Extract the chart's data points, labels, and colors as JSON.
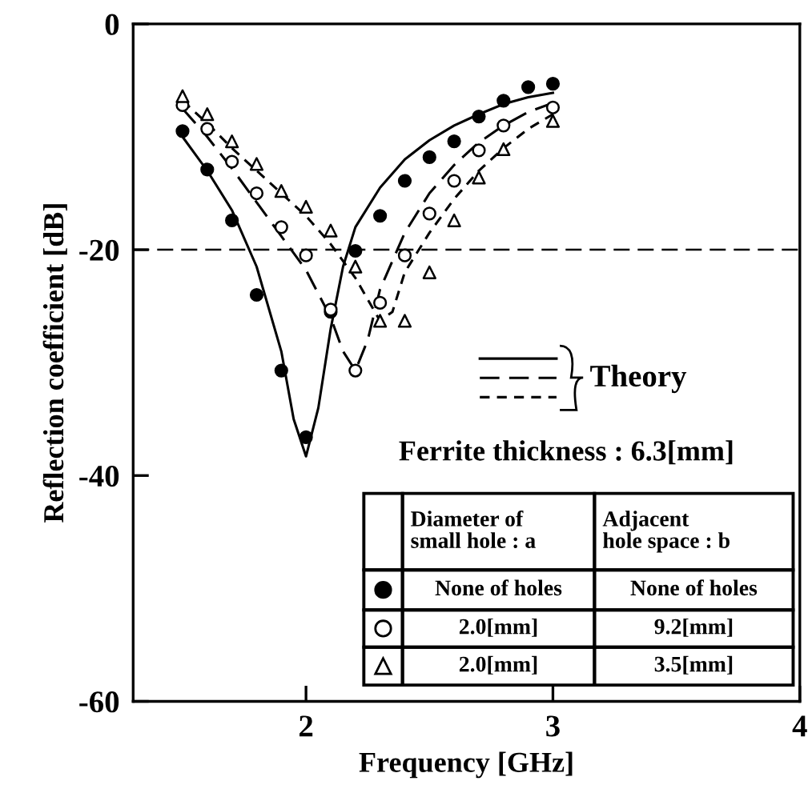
{
  "chart_data": {
    "type": "line",
    "xlabel": "Frequency [GHz]",
    "ylabel": "Reflection coefficient [dB]",
    "xlim": [
      1.3,
      4
    ],
    "xticks": [
      2,
      3,
      4
    ],
    "ylim": [
      -60,
      0
    ],
    "yticks": [
      -60,
      -40,
      -20,
      0
    ],
    "grid": false,
    "ref_lines": [
      {
        "axis": "y",
        "value": -20,
        "line_style": "dashed",
        "color": "#000000"
      }
    ],
    "annotations": [
      "Theory",
      "Ferrite thickness : 6.3[mm]",
      "Diameter of\nsmall hole : a",
      "Adjacent\nhole space : b",
      "None of holes",
      "None of holes",
      "2.0[mm]",
      "9.2[mm]",
      "2.0[mm]",
      "3.5[mm]"
    ],
    "series": [
      {
        "color": "#000000",
        "line_style": "solid",
        "marker": "none",
        "x": [
          1.5,
          1.6,
          1.7,
          1.8,
          1.9,
          1.95,
          2.0,
          2.05,
          2.1,
          2.15,
          2.2,
          2.3,
          2.4,
          2.5,
          2.6,
          2.7,
          2.8,
          2.9,
          3.0
        ],
        "values": [
          -10,
          -13,
          -16.5,
          -21.5,
          -29,
          -35,
          -38.3,
          -34,
          -27,
          -21.5,
          -18,
          -14.5,
          -12,
          -10.3,
          -9,
          -8,
          -7.1,
          -6.5,
          -6.1
        ]
      },
      {
        "color": "#000000",
        "line_style": "dashed",
        "marker": "none",
        "x": [
          1.5,
          1.6,
          1.7,
          1.8,
          1.9,
          2.0,
          2.1,
          2.15,
          2.2,
          2.25,
          2.3,
          2.4,
          2.5,
          2.6,
          2.7,
          2.8,
          2.9,
          3.0
        ],
        "values": [
          -7.5,
          -10,
          -12.8,
          -15.8,
          -18.8,
          -21.8,
          -26,
          -29,
          -30.7,
          -28,
          -23.5,
          -18.5,
          -15,
          -12.5,
          -10.5,
          -9,
          -7.8,
          -7.0
        ]
      },
      {
        "color": "#000000",
        "line_style": "dotted",
        "marker": "none",
        "x": [
          1.5,
          1.6,
          1.7,
          1.8,
          1.9,
          2.0,
          2.1,
          2.2,
          2.3,
          2.35,
          2.4,
          2.5,
          2.6,
          2.7,
          2.8,
          2.9,
          3.0
        ],
        "values": [
          -6.8,
          -8.8,
          -11,
          -13,
          -15,
          -17,
          -19.5,
          -22.5,
          -26.3,
          -25.5,
          -22,
          -18.5,
          -15.5,
          -13,
          -11,
          -9.3,
          -8.0
        ]
      },
      {
        "type": "scatter",
        "color": "#000000",
        "marker": "circle",
        "x": [
          1.5,
          1.6,
          1.7,
          1.8,
          1.9,
          2.0,
          2.1,
          2.2,
          2.3,
          2.4,
          2.5,
          2.6,
          2.7,
          2.8,
          2.9,
          3.0
        ],
        "values": [
          -9.5,
          -12.9,
          -17.4,
          -24.0,
          -30.7,
          -36.6,
          -25.5,
          -20.1,
          -17.0,
          -13.9,
          -11.8,
          -10.4,
          -8.2,
          -6.8,
          -5.6,
          -5.3
        ]
      },
      {
        "type": "scatter",
        "color": "#ffffff",
        "marker": "circle",
        "x": [
          1.5,
          1.6,
          1.7,
          1.8,
          1.9,
          2.0,
          2.1,
          2.2,
          2.3,
          2.4,
          2.5,
          2.6,
          2.7,
          2.8,
          3.0
        ],
        "values": [
          -7.2,
          -9.3,
          -12.2,
          -15.0,
          -18.0,
          -20.5,
          -25.3,
          -30.7,
          -24.7,
          -20.5,
          -16.8,
          -13.9,
          -11.2,
          -9.0,
          -7.4
        ]
      },
      {
        "type": "scatter",
        "color": "#ffffff",
        "marker": "triangle",
        "x": [
          1.5,
          1.6,
          1.7,
          1.8,
          1.9,
          2.0,
          2.1,
          2.2,
          2.3,
          2.4,
          2.5,
          2.6,
          2.7,
          2.8,
          3.0
        ],
        "values": [
          -6.4,
          -8.0,
          -10.4,
          -12.4,
          -14.8,
          -16.2,
          -18.3,
          -21.5,
          -26.3,
          -26.3,
          -22.0,
          -17.4,
          -13.6,
          -11.1,
          -8.6
        ]
      }
    ]
  }
}
